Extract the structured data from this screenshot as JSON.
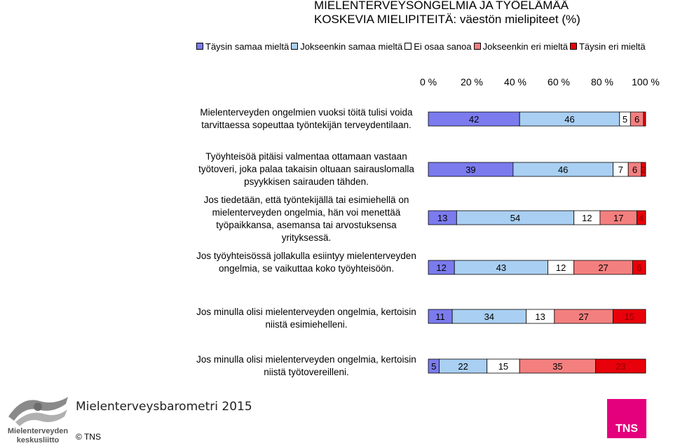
{
  "title_line1": "MIELENTERVEYSONGELMIA JA TYÖELÄMÄÄ",
  "title_line2": "KOSKEVIA MIELIPITEITÄ: väestön mielipiteet (%)",
  "footer": {
    "brand": "Mielenterveysbarometri 2015",
    "copyright": "© TNS",
    "logo_left_line1": "Mielenterveyden",
    "logo_left_line2": "keskusliitto",
    "logo_right": "TNS"
  },
  "chart_data": {
    "type": "bar",
    "orientation": "horizontal",
    "stacked": true,
    "x_ticks": [
      "0 %",
      "20 %",
      "40 %",
      "60 %",
      "80 %",
      "100 %"
    ],
    "xlim": [
      0,
      100
    ],
    "legend_position": "top",
    "categories": [
      "Mielenterveyden ongelmien vuoksi töitä tulisi voida tarvittaessa sopeuttaa työntekijän terveydentilaan.",
      "Työyhteisöä pitäisi valmentaa ottamaan vastaan työtoveri, joka palaa takaisin oltuaan sairauslomalla psyykkisen sairauden tähden.",
      "Jos tiedetään, että työntekijällä tai esimiehellä on mielenterveyden ongelmia, hän voi menettää työpaikkansa, asemansa tai arvostuksensa yrityksessä.",
      "Jos työyhteisössä jollakulla esiintyy mielenterveyden ongelmia, se vaikuttaa koko työyhteisöön.",
      "Jos minulla olisi mielenterveyden ongelmia, kertoisin niistä esimiehelleni.",
      "Jos minulla olisi mielenterveyden ongelmia, kertoisin niistä työtovereilleni."
    ],
    "series": [
      {
        "name": "Täysin samaa mieltä",
        "color": "#7b7bee",
        "values": [
          42,
          39,
          13,
          12,
          11,
          5
        ]
      },
      {
        "name": "Jokseenkin samaa mieltä",
        "color": "#a9cff2",
        "values": [
          46,
          46,
          54,
          43,
          34,
          22
        ]
      },
      {
        "name": "Ei osaa sanoa",
        "color": "#ffffff",
        "values": [
          5,
          7,
          12,
          12,
          13,
          15
        ]
      },
      {
        "name": "Jokseenkin eri mieltä",
        "color": "#f47f7f",
        "values": [
          6,
          6,
          17,
          27,
          27,
          35
        ]
      },
      {
        "name": "Täysin eri mieltä",
        "color": "#e8000a",
        "values": [
          1,
          2,
          4,
          6,
          15,
          23
        ]
      }
    ],
    "data_labels_shown": [
      [
        true,
        true,
        true,
        true,
        false
      ],
      [
        true,
        true,
        true,
        true,
        true
      ],
      [
        true,
        true,
        true,
        true,
        true
      ],
      [
        true,
        true,
        true,
        true,
        true
      ],
      [
        true,
        true,
        true,
        true,
        true
      ],
      [
        true,
        true,
        true,
        true,
        true
      ]
    ]
  }
}
